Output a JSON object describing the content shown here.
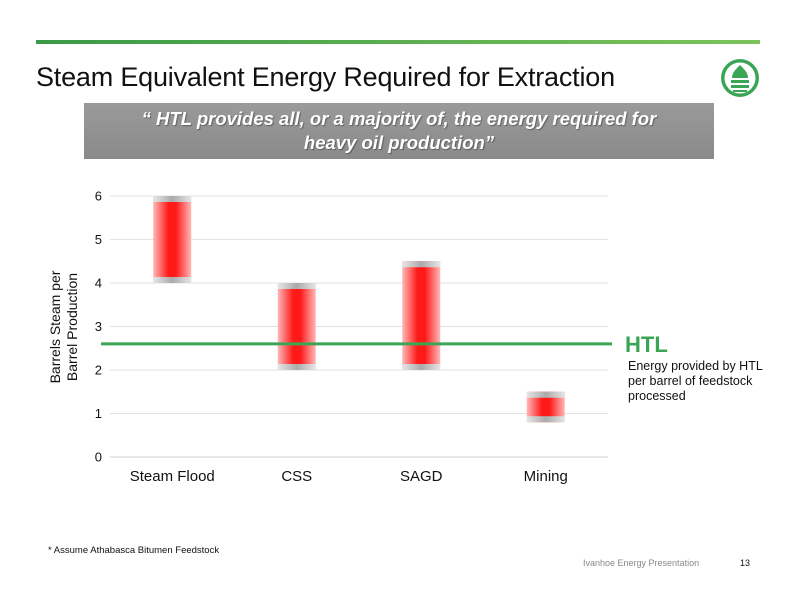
{
  "slide": {
    "title": "Steam Equivalent Energy Required for Extraction",
    "quote_line1": "“ HTL provides all, or a majority of, the energy required for",
    "quote_line2": "heavy oil production”",
    "footnote": "* Assume Athabasca Bitumen Feedstock",
    "footer_company": "Ivanhoe Energy Presentation",
    "page_number": "13"
  },
  "colors": {
    "accent_green": "#3aa655",
    "bar_red": "#ff0000",
    "bar_cap_grey": "#bdbdbd"
  },
  "chart_data": {
    "type": "floating-bar",
    "title": "",
    "xlabel": "",
    "ylabel": "Barrels Steam per Barrel Production",
    "ylabel_line1": "Barrels Steam per",
    "ylabel_line2": "Barrel Production",
    "ylim": [
      0,
      6
    ],
    "yticks": [
      0,
      1,
      2,
      3,
      4,
      5,
      6
    ],
    "grid": true,
    "categories": [
      "Steam Flood",
      "CSS",
      "SAGD",
      "Mining"
    ],
    "ranges": [
      {
        "low": 4.0,
        "high": 6.0
      },
      {
        "low": 2.0,
        "high": 4.0
      },
      {
        "low": 2.0,
        "high": 4.5
      },
      {
        "low": 0.8,
        "high": 1.5
      }
    ],
    "reference_line": {
      "value": 2.6,
      "label": "HTL",
      "annotation_line1": "Energy provided by HTL",
      "annotation_line2": "per barrel of feedstock",
      "annotation_line3": "processed"
    }
  }
}
